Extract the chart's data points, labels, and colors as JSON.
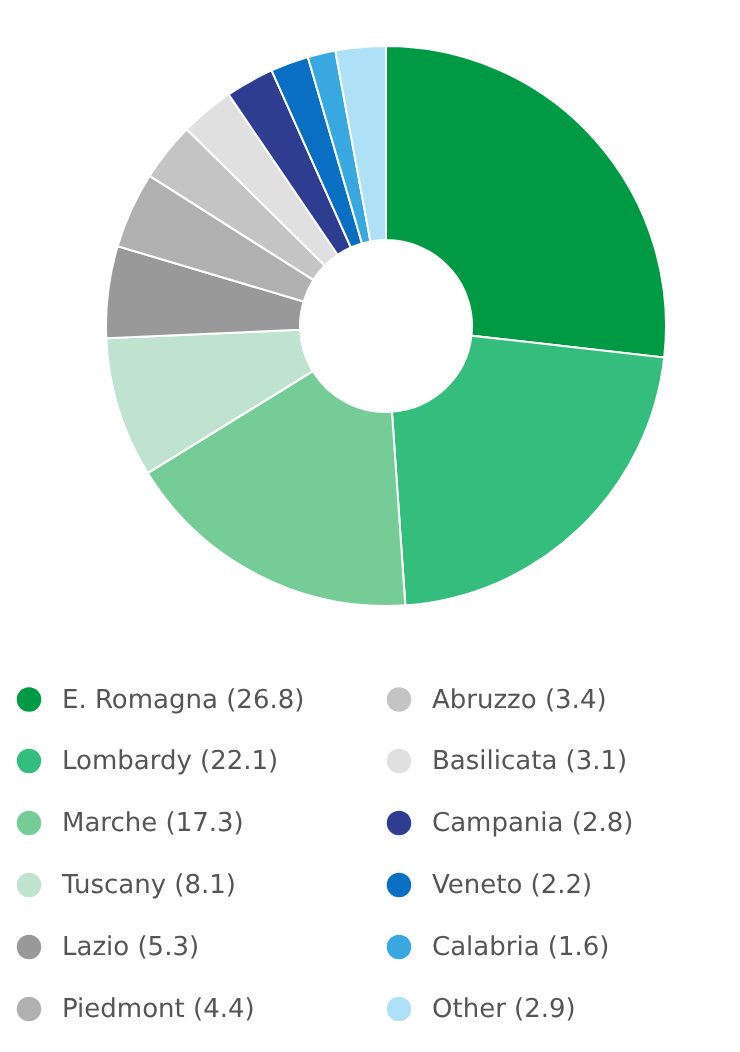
{
  "chart_data": {
    "type": "donut",
    "categories": [
      "E. Romagna (26.8)",
      "Lombardy (22.1)",
      "Marche (17.3)",
      "Tuscany (8.1)",
      "Lazio (5.3)",
      "Piedmont (4.4)",
      "Abruzzo (3.4)",
      "Basilicata (3.1)",
      "Campania (2.8)",
      "Veneto (2.2)",
      "Calabria (1.6)",
      "Other (2.9)"
    ],
    "values": [
      26.8,
      22.1,
      17.3,
      8.1,
      5.3,
      4.4,
      3.4,
      3.1,
      2.8,
      2.2,
      1.6,
      2.9
    ],
    "colors": [
      "#009a44",
      "#35bd7d",
      "#76cc96",
      "#bfe3cf",
      "#999999",
      "#b0b0b0",
      "#c4c4c4",
      "#e0e0e0",
      "#2e3d8f",
      "#0a6fc2",
      "#3aa8e0",
      "#aee0f7"
    ],
    "legend": "bottom"
  }
}
